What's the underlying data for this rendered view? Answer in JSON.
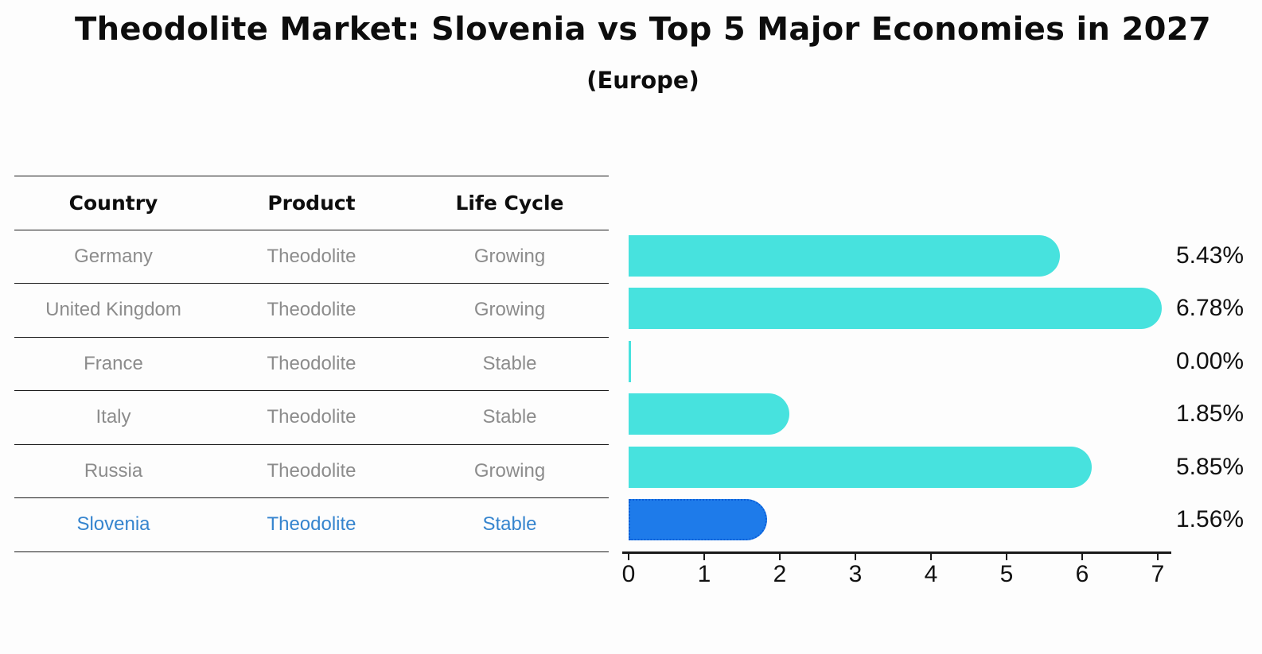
{
  "chart_data": {
    "type": "bar",
    "orientation": "horizontal",
    "title": "Theodolite Market: Slovenia vs Top 5 Major Economies in 2027",
    "subtitle": "(Europe)",
    "categories": [
      "Germany",
      "United Kingdom",
      "France",
      "Italy",
      "Russia",
      "Slovenia"
    ],
    "values": [
      5.43,
      6.78,
      0.0,
      1.85,
      5.85,
      1.56
    ],
    "value_labels": [
      "5.43%",
      "6.78%",
      "0.00%",
      "1.85%",
      "5.85%",
      "1.56%"
    ],
    "xlim": [
      0,
      7
    ],
    "x_ticks": [
      "0",
      "1",
      "2",
      "3",
      "4",
      "5",
      "6",
      "7"
    ],
    "grid": false,
    "legend": "none",
    "bar_color": "#47E2DE",
    "highlight_color": "#1E7BEA",
    "highlight_border_color": "#0b5fd9",
    "highlight_index": 5
  },
  "table": {
    "headers": [
      "Country",
      "Product",
      "Life Cycle"
    ],
    "rows": [
      {
        "country": "Germany",
        "product": "Theodolite",
        "life_cycle": "Growing"
      },
      {
        "country": "United Kingdom",
        "product": "Theodolite",
        "life_cycle": "Growing"
      },
      {
        "country": "France",
        "product": "Theodolite",
        "life_cycle": "Stable"
      },
      {
        "country": "Italy",
        "product": "Theodolite",
        "life_cycle": "Stable"
      },
      {
        "country": "Russia",
        "product": "Theodolite",
        "life_cycle": "Growing"
      },
      {
        "country": "Slovenia",
        "product": "Theodolite",
        "life_cycle": "Stable"
      }
    ],
    "highlight_row_index": 5,
    "highlight_text_color": "#3584ce"
  }
}
